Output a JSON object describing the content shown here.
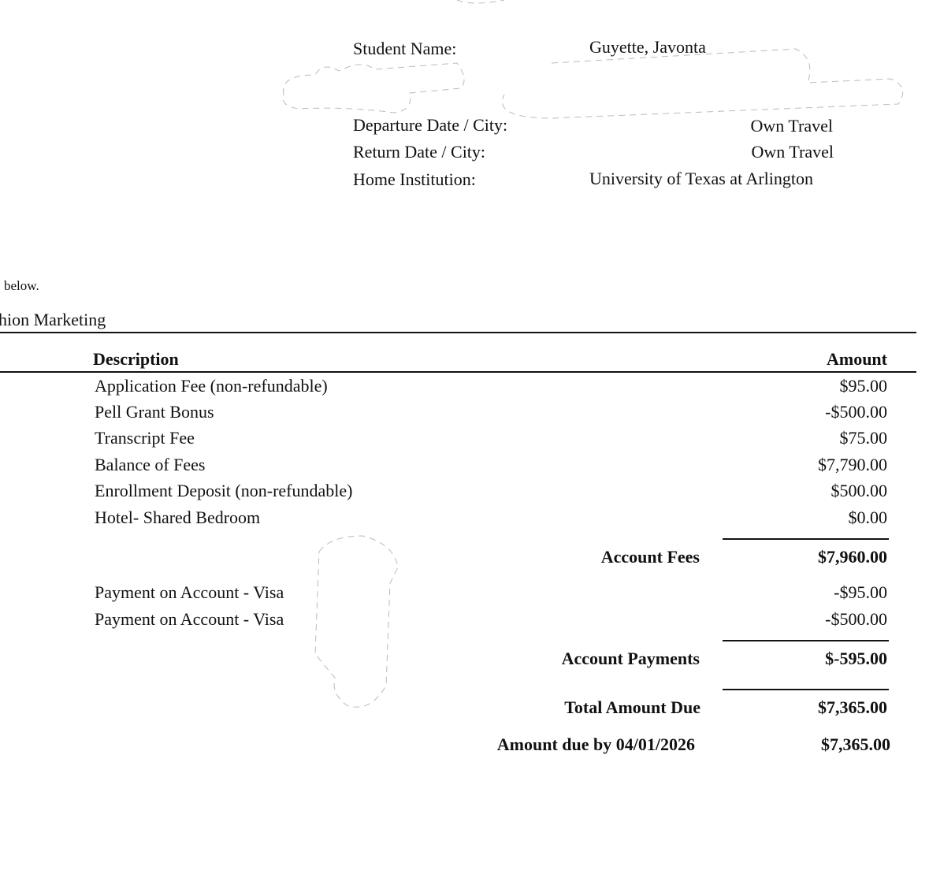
{
  "student_info": {
    "student_name_label": "Student Name:",
    "student_name": "Guyette, Javonta",
    "departure_label": "Departure Date / City:",
    "departure_value": "Own Travel",
    "return_label": "Return Date / City:",
    "return_value": "Own Travel",
    "home_institution_label": "Home Institution:",
    "home_institution": "University of Texas at Arlington"
  },
  "intro_text": "below.",
  "program_name": "hion Marketing",
  "table": {
    "headers": {
      "description": "Description",
      "amount": "Amount"
    },
    "fees": [
      {
        "description": "Application Fee (non-refundable)",
        "amount": "$95.00"
      },
      {
        "description": "Pell Grant Bonus",
        "amount": "-$500.00"
      },
      {
        "description": "Transcript Fee",
        "amount": "$75.00"
      },
      {
        "description": "Balance of Fees",
        "amount": "$7,790.00"
      },
      {
        "description": "Enrollment Deposit (non-refundable)",
        "amount": "$500.00"
      },
      {
        "description": "Hotel- Shared Bedroom",
        "amount": "$0.00"
      }
    ],
    "account_fees_label": "Account Fees",
    "account_fees_total": "$7,960.00",
    "payments": [
      {
        "description": "Payment on Account - Visa",
        "amount": "-$95.00"
      },
      {
        "description": "Payment on Account - Visa",
        "amount": "-$500.00"
      }
    ],
    "account_payments_label": "Account Payments",
    "account_payments_total": "$-595.00",
    "total_due_label": "Total Amount Due",
    "total_due": "$7,365.00",
    "due_by_label": "Amount due by 04/01/2026",
    "due_by_amount": "$7,365.00"
  }
}
